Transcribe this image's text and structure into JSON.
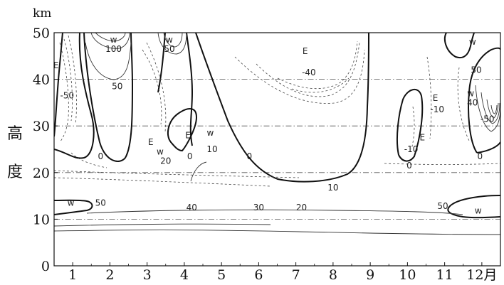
{
  "chart_data": {
    "type": "contour",
    "title": "",
    "ylabel": "高度",
    "y_unit": "km",
    "x_suffix": "月",
    "x_ticks": [
      "1",
      "2",
      "3",
      "4",
      "5",
      "6",
      "7",
      "8",
      "9",
      "10",
      "11",
      "12"
    ],
    "y_ticks": [
      "0",
      "10",
      "20",
      "30",
      "40",
      "50"
    ],
    "ylim": [
      0,
      50
    ],
    "xlim": [
      0.5,
      12.5
    ],
    "grid_lines_y": [
      10,
      20,
      30,
      40
    ],
    "contour_labels": [
      {
        "text": "100",
        "month": 2.1,
        "km": 46.5
      },
      {
        "text": "50",
        "month": 2.2,
        "km": 38.5
      },
      {
        "text": "0",
        "month": 1.75,
        "km": 23.5
      },
      {
        "text": "-50",
        "month": 0.85,
        "km": 36.5
      },
      {
        "text": "50",
        "month": 1.75,
        "km": 13.5
      },
      {
        "text": "w",
        "month": 0.95,
        "km": 13.5
      },
      {
        "text": "w",
        "month": 2.1,
        "km": 48.5
      },
      {
        "text": "w",
        "month": 3.6,
        "km": 48.5
      },
      {
        "text": "50",
        "month": 3.6,
        "km": 46.5
      },
      {
        "text": "E",
        "month": 3.1,
        "km": 26.5
      },
      {
        "text": "w",
        "month": 3.35,
        "km": 24.5
      },
      {
        "text": "20",
        "month": 3.5,
        "km": 22.5
      },
      {
        "text": "E",
        "month": 4.1,
        "km": 28
      },
      {
        "text": "0",
        "month": 4.15,
        "km": 23.5
      },
      {
        "text": "w",
        "month": 4.7,
        "km": 28.5
      },
      {
        "text": "10",
        "month": 4.75,
        "km": 25
      },
      {
        "text": "40",
        "month": 4.2,
        "km": 12.5
      },
      {
        "text": "0",
        "month": 5.75,
        "km": 23.5
      },
      {
        "text": "30",
        "month": 6.0,
        "km": 12.5
      },
      {
        "text": "20",
        "month": 7.15,
        "km": 12.5
      },
      {
        "text": "10",
        "month": 8.0,
        "km": 16.8
      },
      {
        "text": "E",
        "month": 7.25,
        "km": 46
      },
      {
        "text": "-40",
        "month": 7.35,
        "km": 41.5
      },
      {
        "text": "0",
        "month": 10.05,
        "km": 21.5
      },
      {
        "text": "-10",
        "month": 10.1,
        "km": 25
      },
      {
        "text": "E",
        "month": 10.4,
        "km": 27.5
      },
      {
        "text": "E",
        "month": 10.75,
        "km": 36
      },
      {
        "text": "-10",
        "month": 10.8,
        "km": 33.5
      },
      {
        "text": "50",
        "month": 10.95,
        "km": 12.8
      },
      {
        "text": "w",
        "month": 11.9,
        "km": 11.8
      },
      {
        "text": "w",
        "month": 11.75,
        "km": 48
      },
      {
        "text": "50",
        "month": 11.85,
        "km": 42
      },
      {
        "text": "w",
        "month": 11.7,
        "km": 37
      },
      {
        "text": "40",
        "month": 11.75,
        "km": 35
      },
      {
        "text": "-50",
        "month": 12.15,
        "km": 31.5
      },
      {
        "text": "0",
        "month": 11.95,
        "km": 23.5
      },
      {
        "text": "E",
        "month": 0.55,
        "km": 43
      }
    ]
  }
}
